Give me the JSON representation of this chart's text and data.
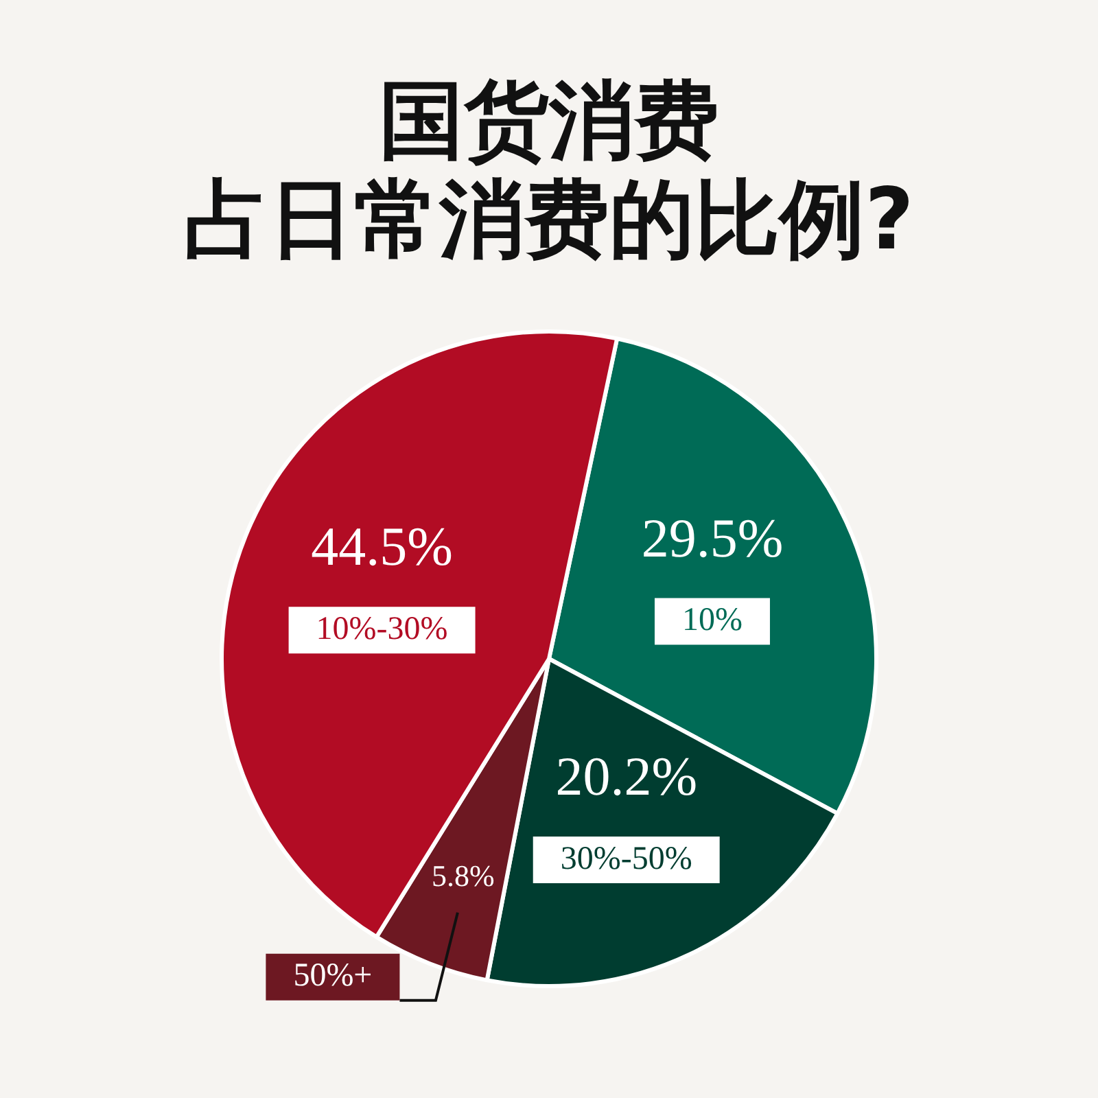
{
  "chart_data": {
    "type": "pie",
    "title": "国货消费",
    "subtitle": "占日常消费的比例?",
    "categories": [
      "10%",
      "30%-50%",
      "50%+",
      "10%-30%"
    ],
    "values": [
      29.5,
      20.2,
      5.8,
      44.5
    ],
    "value_labels": [
      "29.5%",
      "20.2%",
      "5.8%",
      "44.5%"
    ],
    "colors": [
      "#006b56",
      "#003d30",
      "#6d1822",
      "#b20c24"
    ],
    "legend": false
  }
}
